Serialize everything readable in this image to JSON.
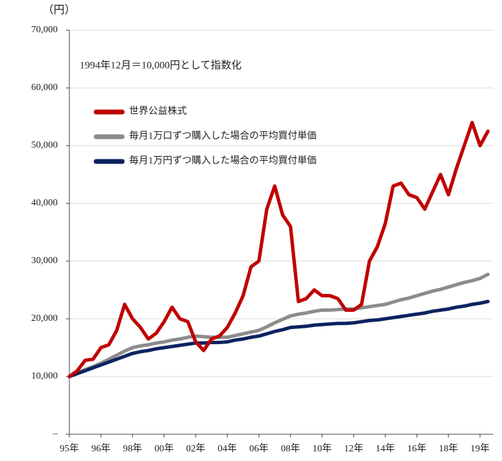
{
  "chart_data": {
    "type": "line",
    "y_axis_label": "（円）",
    "annotation": "1994年12月＝10,000円として指数化",
    "categories": [
      "95年",
      null,
      null,
      null,
      "96年",
      null,
      null,
      null,
      "98年",
      null,
      null,
      null,
      "00年",
      null,
      null,
      null,
      "02年",
      null,
      null,
      null,
      "04年",
      null,
      null,
      null,
      "06年",
      null,
      null,
      null,
      "08年",
      null,
      null,
      null,
      "10年",
      null,
      null,
      null,
      "12年",
      null,
      null,
      null,
      "14年",
      null,
      null,
      null,
      "16年",
      null,
      null,
      null,
      "18年",
      null,
      null,
      null,
      "19年",
      null
    ],
    "series": [
      {
        "name": "世界公益株式",
        "color": "#c00000",
        "values": [
          10000,
          11000,
          12800,
          13000,
          15000,
          15500,
          18000,
          22500,
          20000,
          18500,
          16500,
          17500,
          19500,
          22000,
          20000,
          19500,
          16000,
          14500,
          16500,
          17000,
          18500,
          21000,
          24000,
          29000,
          30000,
          39000,
          43000,
          38000,
          36000,
          23000,
          23500,
          25000,
          24000,
          24000,
          23500,
          21500,
          21500,
          22500,
          30000,
          32500,
          36500,
          43000,
          43500,
          41500,
          41000,
          39000,
          42000,
          45000,
          41500,
          46000,
          50000,
          54000,
          50000,
          52500
        ]
      },
      {
        "name": "毎月1万口ずつ購入した場合の平均買付単価",
        "color": "#8c8c8c",
        "values": [
          10000,
          10600,
          11200,
          11700,
          12300,
          13000,
          13700,
          14400,
          15000,
          15300,
          15500,
          15800,
          16000,
          16300,
          16500,
          16800,
          17000,
          16900,
          16800,
          16800,
          16800,
          17100,
          17400,
          17700,
          18000,
          18600,
          19300,
          19900,
          20500,
          20800,
          21000,
          21300,
          21500,
          21500,
          21600,
          21700,
          21700,
          21900,
          22100,
          22300,
          22500,
          22900,
          23300,
          23600,
          24000,
          24400,
          24800,
          25100,
          25500,
          25900,
          26300,
          26600,
          27000,
          27700
        ]
      },
      {
        "name": "毎月1万円ずつ購入した場合の平均買付単価",
        "color": "#0d2260",
        "values": [
          10000,
          10500,
          11000,
          11500,
          12000,
          12500,
          13000,
          13500,
          14000,
          14300,
          14500,
          14800,
          15000,
          15200,
          15400,
          15600,
          15800,
          15800,
          15900,
          15900,
          16000,
          16300,
          16500,
          16800,
          17000,
          17400,
          17800,
          18100,
          18500,
          18600,
          18700,
          18900,
          19000,
          19100,
          19200,
          19200,
          19300,
          19500,
          19700,
          19800,
          20000,
          20200,
          20400,
          20600,
          20800,
          21000,
          21300,
          21500,
          21700,
          22000,
          22200,
          22500,
          22700,
          23000
        ]
      }
    ],
    "ylim": [
      0,
      70000
    ],
    "yticks": [
      {
        "value": 0,
        "label": "–"
      },
      {
        "value": 10000,
        "label": "10,000"
      },
      {
        "value": 20000,
        "label": "20,000"
      },
      {
        "value": 30000,
        "label": "30,000"
      },
      {
        "value": 40000,
        "label": "40,000"
      },
      {
        "value": 50000,
        "label": "50,000"
      },
      {
        "value": 60000,
        "label": "60,000"
      },
      {
        "value": 70000,
        "label": "70,000"
      }
    ],
    "grid": true
  }
}
